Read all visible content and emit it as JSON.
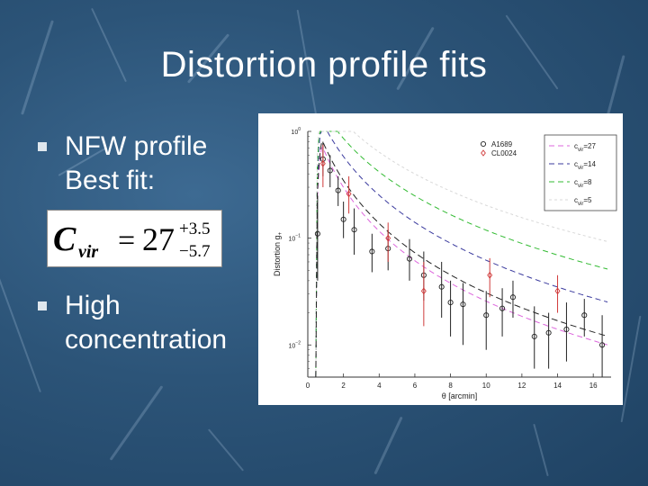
{
  "slide": {
    "title": "Distortion profile fits",
    "bullets": [
      {
        "line1": "NFW profile",
        "line2": "Best fit:"
      },
      {
        "line1": "High",
        "line2": "concentration"
      }
    ],
    "formula": {
      "symbol": "C",
      "subscript": "vir",
      "value": "27",
      "plus": "+3.5",
      "minus": "−5.7"
    },
    "colors": {
      "accent": "#ffffff",
      "bullet": "#dfe7ee"
    }
  },
  "chart_data": {
    "type": "scatter",
    "xlabel": "θ [arcmin]",
    "ylabel": "Distortion  g",
    "ylabel_sub": "+",
    "xlim": [
      0,
      17
    ],
    "ylim": [
      0.005,
      1.0
    ],
    "yscale": "log",
    "xticks": [
      "0",
      "2",
      "4",
      "6",
      "8",
      "10",
      "12",
      "14",
      "16"
    ],
    "yticks": [
      {
        "base": "10",
        "exp": "0"
      },
      {
        "base": "10",
        "exp": "−1"
      },
      {
        "base": "10",
        "exp": "−2"
      }
    ],
    "legend_position": "top-right",
    "series": [
      {
        "name": "A1689",
        "marker": "circle",
        "color": "#222222",
        "points": [
          {
            "x": 0.55,
            "y": 0.11,
            "lo": 0.04,
            "hi": 0.25
          },
          {
            "x": 0.85,
            "y": 0.55,
            "lo": 0.38,
            "hi": 0.8
          },
          {
            "x": 1.25,
            "y": 0.43,
            "lo": 0.3,
            "hi": 0.6
          },
          {
            "x": 1.7,
            "y": 0.28,
            "lo": 0.2,
            "hi": 0.38
          },
          {
            "x": 2.0,
            "y": 0.15,
            "lo": 0.1,
            "hi": 0.22
          },
          {
            "x": 2.6,
            "y": 0.12,
            "lo": 0.07,
            "hi": 0.19
          },
          {
            "x": 3.6,
            "y": 0.075,
            "lo": 0.048,
            "hi": 0.11
          },
          {
            "x": 4.5,
            "y": 0.08,
            "lo": 0.05,
            "hi": 0.12
          },
          {
            "x": 5.7,
            "y": 0.064,
            "lo": 0.04,
            "hi": 0.098
          },
          {
            "x": 6.5,
            "y": 0.045,
            "lo": 0.026,
            "hi": 0.075
          },
          {
            "x": 7.5,
            "y": 0.035,
            "lo": 0.018,
            "hi": 0.06
          },
          {
            "x": 8.0,
            "y": 0.025,
            "lo": 0.012,
            "hi": 0.04
          },
          {
            "x": 8.7,
            "y": 0.024,
            "lo": 0.01,
            "hi": 0.038
          },
          {
            "x": 10.0,
            "y": 0.019,
            "lo": 0.009,
            "hi": 0.032
          },
          {
            "x": 10.9,
            "y": 0.022,
            "lo": 0.012,
            "hi": 0.034
          },
          {
            "x": 11.5,
            "y": 0.028,
            "lo": 0.018,
            "hi": 0.04
          },
          {
            "x": 12.7,
            "y": 0.012,
            "lo": 0.006,
            "hi": 0.023
          },
          {
            "x": 13.5,
            "y": 0.013,
            "lo": 0.006,
            "hi": 0.02
          },
          {
            "x": 14.5,
            "y": 0.014,
            "lo": 0.007,
            "hi": 0.025
          },
          {
            "x": 15.5,
            "y": 0.019,
            "lo": 0.012,
            "hi": 0.027
          },
          {
            "x": 16.5,
            "y": 0.01,
            "lo": 0.005,
            "hi": 0.019
          }
        ]
      },
      {
        "name": "CL0024",
        "marker": "diamond",
        "color": "#d03a3a",
        "points": [
          {
            "x": 0.85,
            "y": 0.5,
            "lo": 0.3,
            "hi": 0.75
          },
          {
            "x": 2.3,
            "y": 0.26,
            "lo": 0.17,
            "hi": 0.38
          },
          {
            "x": 4.5,
            "y": 0.1,
            "lo": 0.06,
            "hi": 0.14
          },
          {
            "x": 6.5,
            "y": 0.032,
            "lo": 0.015,
            "hi": 0.06
          },
          {
            "x": 10.2,
            "y": 0.045,
            "lo": 0.028,
            "hi": 0.065
          },
          {
            "x": 14.0,
            "y": 0.032,
            "lo": 0.02,
            "hi": 0.045
          }
        ]
      }
    ],
    "models": [
      {
        "name": "c_vir=27",
        "c_label": "c",
        "c_sub": "vir",
        "c_eq": "=27",
        "color": "#dd66dd",
        "norm": 2.3,
        "rs": 1.43,
        "dash": "6,4"
      },
      {
        "name": "c_vir=14",
        "c_label": "c",
        "c_sub": "vir",
        "c_eq": "=14",
        "color": "#3b3b9e",
        "norm": 3.2,
        "rs": 2.78,
        "dash": "6,4"
      },
      {
        "name": "c_vir=8",
        "c_label": "c",
        "c_sub": "vir",
        "c_eq": "=8",
        "color": "#33bb33",
        "norm": 3.75,
        "rs": 5.5,
        "dash": "6,4"
      },
      {
        "name": "c_vir=5",
        "c_label": "c",
        "c_sub": "vir",
        "c_eq": "=5",
        "color": "#d8d8d8",
        "norm": 4.8,
        "rs": 9.0,
        "dash": "3,3"
      },
      {
        "name": "best-fit",
        "c_label": "",
        "c_sub": "",
        "c_eq": "",
        "color": "#222222",
        "norm": 2.5,
        "rs": 1.6,
        "dash": "7,4",
        "legend": false
      }
    ]
  }
}
